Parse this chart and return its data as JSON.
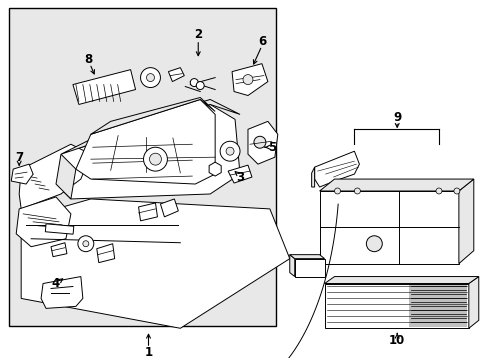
{
  "figsize": [
    4.89,
    3.6
  ],
  "dpi": 100,
  "bg_color": "#e8e8e8",
  "lc": "#000000",
  "white": "#ffffff",
  "gray_light": "#d0d0d0",
  "gray_mid": "#b8b8b8"
}
